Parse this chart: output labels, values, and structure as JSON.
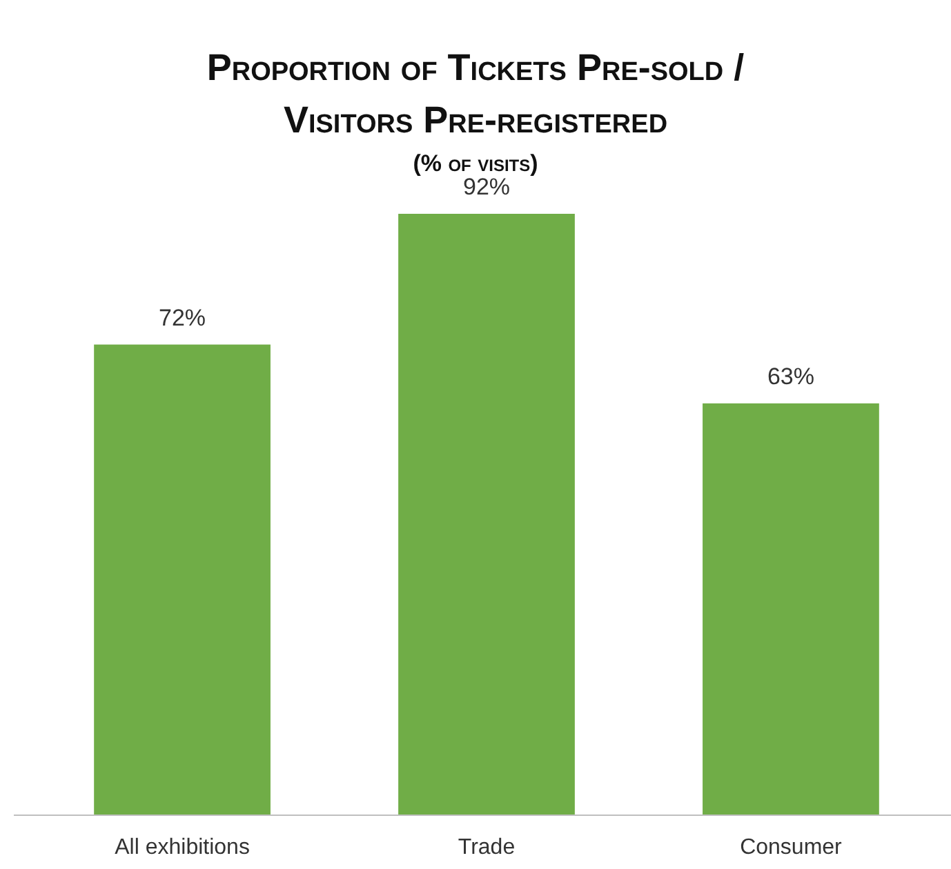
{
  "chart_data": {
    "type": "bar",
    "title": "Proportion of Tickets Pre-sold / Visitors Pre-registered",
    "subtitle": "(% of visits)",
    "categories": [
      "All exhibitions",
      "Trade",
      "Consumer"
    ],
    "values": [
      72,
      92,
      63
    ],
    "value_labels": [
      "72%",
      "92%",
      "63%"
    ],
    "color": "#70ad47"
  }
}
